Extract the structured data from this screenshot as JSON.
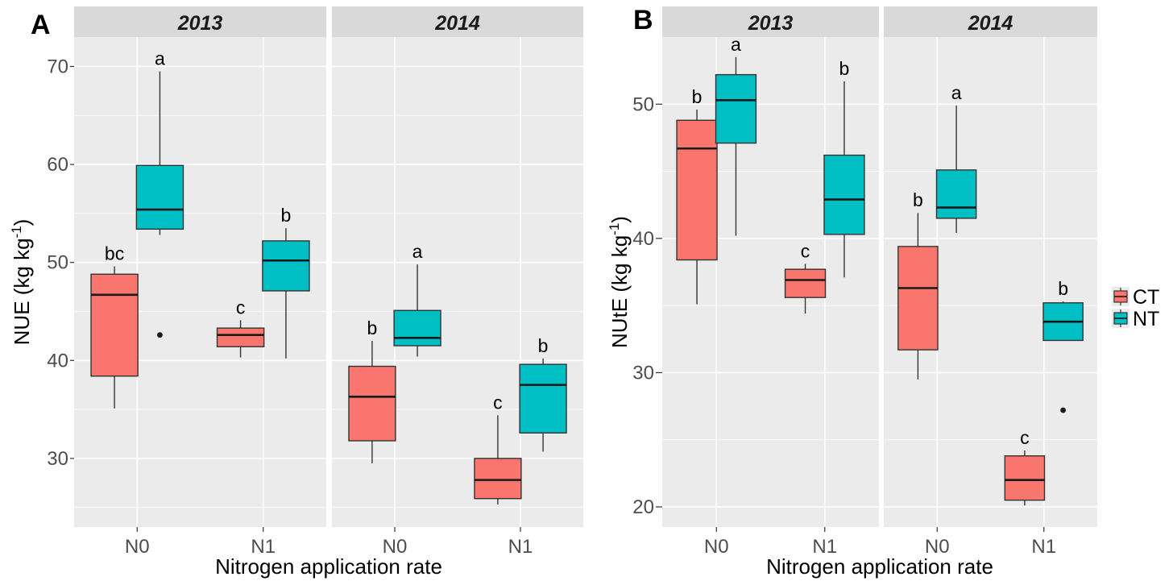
{
  "colors": {
    "CT": "#F8766D",
    "NT": "#00BFC4",
    "panel_bg": "#EBEBEB",
    "strip_bg": "#D9D9D9",
    "grid": "#FFFFFF",
    "outline": "#333333"
  },
  "legend": {
    "position": "right",
    "entries": [
      {
        "key": "CT",
        "label": "CT"
      },
      {
        "key": "NT",
        "label": "NT"
      }
    ]
  },
  "chart_data": [
    {
      "type": "box",
      "panel_tag": "A",
      "ylabel": "NUE (kg kg-1)",
      "ylabel_main": "NUE (kg kg",
      "ylabel_sup": "-1",
      "ylabel_close": ")",
      "xlabel": "Nitrogen application rate",
      "ylim": [
        23,
        73
      ],
      "yticks": [
        30,
        40,
        50,
        60,
        70
      ],
      "grid": true,
      "facets": [
        {
          "label": "2013",
          "categories": [
            "N0",
            "N1"
          ],
          "boxes": [
            {
              "category": "N0",
              "group": "CT",
              "min": 35.1,
              "q1": 38.4,
              "median": 46.7,
              "q3": 48.8,
              "max": 49.6,
              "outliers": [],
              "letter": "bc"
            },
            {
              "category": "N0",
              "group": "NT",
              "min": 52.8,
              "q1": 53.4,
              "median": 55.4,
              "q3": 59.9,
              "max": 69.5,
              "outliers": [
                42.6
              ],
              "letter": "a"
            },
            {
              "category": "N1",
              "group": "CT",
              "min": 40.3,
              "q1": 41.4,
              "median": 42.6,
              "q3": 43.3,
              "max": 44.1,
              "outliers": [],
              "letter": "c"
            },
            {
              "category": "N1",
              "group": "NT",
              "min": 40.2,
              "q1": 47.1,
              "median": 50.2,
              "q3": 52.2,
              "max": 53.5,
              "outliers": [],
              "letter": "b"
            }
          ]
        },
        {
          "label": "2014",
          "categories": [
            "N0",
            "N1"
          ],
          "boxes": [
            {
              "category": "N0",
              "group": "CT",
              "min": 29.5,
              "q1": 31.8,
              "median": 36.3,
              "q3": 39.4,
              "max": 42.0,
              "outliers": [],
              "letter": "b"
            },
            {
              "category": "N0",
              "group": "NT",
              "min": 40.4,
              "q1": 41.5,
              "median": 42.3,
              "q3": 45.1,
              "max": 49.8,
              "outliers": [],
              "letter": "a"
            },
            {
              "category": "N1",
              "group": "CT",
              "min": 25.3,
              "q1": 25.9,
              "median": 27.8,
              "q3": 30.0,
              "max": 34.4,
              "outliers": [],
              "letter": "c"
            },
            {
              "category": "N1",
              "group": "NT",
              "min": 30.7,
              "q1": 32.6,
              "median": 37.5,
              "q3": 39.6,
              "max": 40.2,
              "outliers": [],
              "letter": "b"
            }
          ]
        }
      ]
    },
    {
      "type": "box",
      "panel_tag": "B",
      "ylabel": "NUtE (kg kg-1)",
      "ylabel_main": "NUtE (kg kg",
      "ylabel_sup": "-1",
      "ylabel_close": ")",
      "xlabel": "Nitrogen application rate",
      "ylim": [
        18.5,
        55
      ],
      "yticks": [
        20,
        30,
        40,
        50
      ],
      "grid": true,
      "facets": [
        {
          "label": "2013",
          "categories": [
            "N0",
            "N1"
          ],
          "boxes": [
            {
              "category": "N0",
              "group": "CT",
              "min": 35.1,
              "q1": 38.4,
              "median": 46.7,
              "q3": 48.8,
              "max": 49.6,
              "outliers": [],
              "letter": "b"
            },
            {
              "category": "N0",
              "group": "NT",
              "min": 40.2,
              "q1": 47.1,
              "median": 50.3,
              "q3": 52.2,
              "max": 53.5,
              "outliers": [],
              "letter": "a"
            },
            {
              "category": "N1",
              "group": "CT",
              "min": 34.4,
              "q1": 35.6,
              "median": 36.9,
              "q3": 37.7,
              "max": 38.1,
              "outliers": [],
              "letter": "c"
            },
            {
              "category": "N1",
              "group": "NT",
              "min": 37.1,
              "q1": 40.3,
              "median": 42.9,
              "q3": 46.2,
              "max": 51.7,
              "outliers": [],
              "letter": "b"
            }
          ]
        },
        {
          "label": "2014",
          "categories": [
            "N0",
            "N1"
          ],
          "boxes": [
            {
              "category": "N0",
              "group": "CT",
              "min": 29.5,
              "q1": 31.7,
              "median": 36.3,
              "q3": 39.4,
              "max": 41.9,
              "outliers": [],
              "letter": "b"
            },
            {
              "category": "N0",
              "group": "NT",
              "min": 40.4,
              "q1": 41.5,
              "median": 42.3,
              "q3": 45.1,
              "max": 49.9,
              "outliers": [],
              "letter": "a"
            },
            {
              "category": "N1",
              "group": "CT",
              "min": 20.1,
              "q1": 20.5,
              "median": 22.0,
              "q3": 23.8,
              "max": 24.2,
              "outliers": [],
              "letter": "c"
            },
            {
              "category": "N1",
              "group": "NT",
              "min": 32.4,
              "q1": 32.4,
              "median": 33.8,
              "q3": 35.2,
              "max": 35.3,
              "outliers": [
                27.2
              ],
              "letter": "b"
            }
          ]
        }
      ]
    }
  ]
}
